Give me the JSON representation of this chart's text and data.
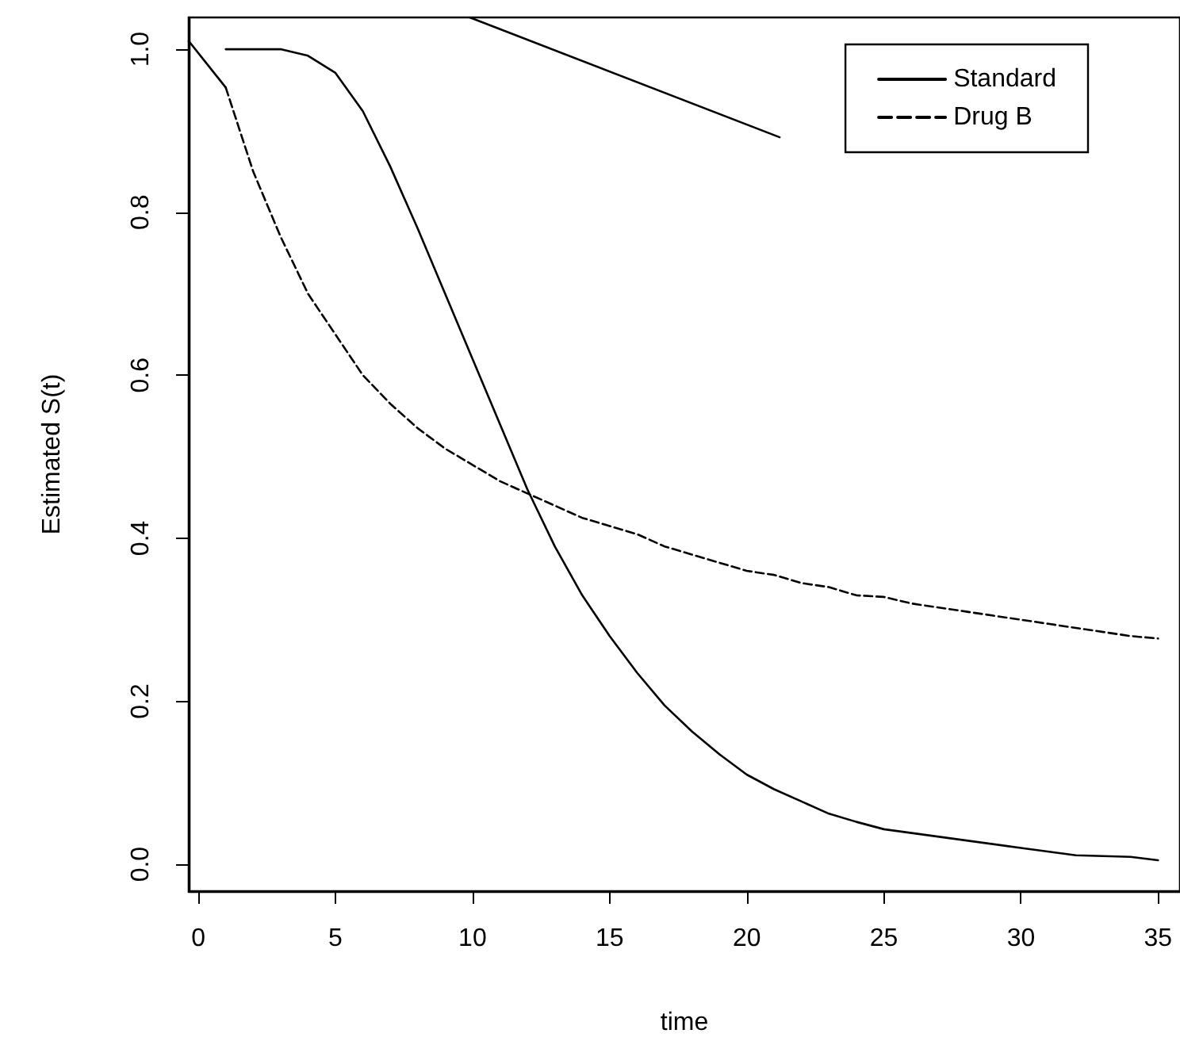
{
  "chart_data": {
    "type": "line",
    "xlabel": "time",
    "ylabel": "Estimated S(t)",
    "xlim": [
      -0.35,
      35.8
    ],
    "ylim": [
      -0.033,
      1.039
    ],
    "xticks": [
      0,
      5,
      10,
      15,
      20,
      25,
      30,
      35
    ],
    "yticks": [
      {
        "value": 0,
        "label": "0.0"
      },
      0.2,
      0.4,
      0.6,
      0.8,
      {
        "value": 1,
        "label": "1.0"
      }
    ],
    "legend": "top right",
    "marker": "none",
    "series": [
      {
        "name": "Standard",
        "color": "#000000",
        "line_style": "solid",
        "x": [
          1,
          2,
          3,
          4,
          5,
          6,
          7,
          8,
          9,
          10,
          11,
          12,
          13,
          14,
          15,
          16,
          17,
          18,
          19,
          20,
          21,
          22,
          23,
          24,
          25,
          30,
          32,
          34,
          35
        ],
        "values": [
          1.0,
          1.0,
          1.0,
          0.992,
          0.971,
          0.924,
          0.856,
          0.78,
          0.7,
          0.62,
          0.54,
          0.46,
          0.39,
          0.33,
          0.28,
          0.235,
          0.195,
          0.163,
          0.135,
          0.11,
          0.092,
          0.077,
          0.062,
          0.052,
          0.043,
          0.02,
          0.011,
          0.009,
          0.005
        ]
      },
      {
        "name": "Drug B",
        "color": "#000000",
        "line_style": "dashed",
        "x": [
          1,
          2,
          3,
          4,
          5,
          6,
          7,
          8,
          9,
          10,
          11,
          12,
          13,
          14,
          15,
          16,
          17,
          18,
          19,
          20,
          21,
          22,
          23,
          24,
          25,
          26,
          27,
          28,
          29,
          30,
          31,
          32,
          33,
          34,
          35
        ],
        "values": [
          0.953,
          0.85,
          0.77,
          0.7,
          0.65,
          0.6,
          0.565,
          0.535,
          0.51,
          0.49,
          0.47,
          0.455,
          0.44,
          0.425,
          0.415,
          0.405,
          0.39,
          0.38,
          0.37,
          0.36,
          0.355,
          0.345,
          0.34,
          0.33,
          0.328,
          0.32,
          0.315,
          0.31,
          0.305,
          0.3,
          0.295,
          0.29,
          0.285,
          0.28,
          0.277
        ]
      },
      {
        "color": "#000000",
        "line_style": "solid",
        "x": [
          -0.35,
          1
        ],
        "values": [
          1.01,
          0.953
        ]
      },
      {
        "color": "#000000",
        "line_style": "solid",
        "x": [
          9.9,
          21.2
        ],
        "values": [
          1.039,
          0.892
        ]
      }
    ]
  }
}
